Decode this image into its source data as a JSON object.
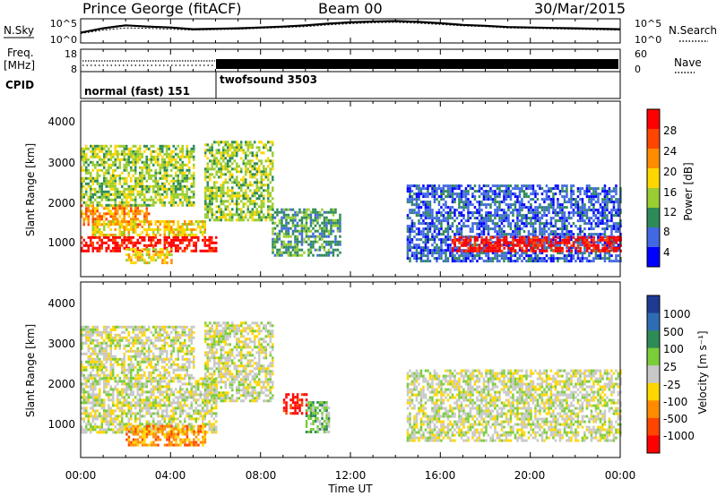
{
  "header": {
    "station": "Prince George (fitACF)",
    "beam": "Beam 00",
    "date": "30/Mar/2015"
  },
  "nsky_panel": {
    "left_label": "N.Sky",
    "right_label": "N.Search",
    "left_ticks": [
      "10^5",
      "10^0"
    ],
    "right_ticks": [
      "10^5",
      "10^0"
    ]
  },
  "freq_panel": {
    "left_label_line1": "Freq.",
    "left_label_line2": "[MHz]",
    "left_ticks": [
      "18",
      "8"
    ],
    "right_ticks": [
      "60",
      "0"
    ],
    "right_label": "Nave"
  },
  "cpid_panel": {
    "label": "CPID",
    "modes": [
      {
        "name": "normal (fast) 151",
        "start_hour": 0,
        "end_hour": 6
      },
      {
        "name": "twofsound 3503",
        "start_hour": 6,
        "end_hour": 24
      }
    ]
  },
  "power_panel": {
    "ylabel": "Slant Range [km]",
    "yticks": [
      "4000",
      "3000",
      "2000",
      "1000"
    ],
    "colorbar_label": "Power [dB]",
    "colorbar_ticks": [
      "28",
      "24",
      "20",
      "16",
      "12",
      "8",
      "4"
    ],
    "colors": [
      "#ff0000",
      "#ff4500",
      "#ff8c00",
      "#ffd700",
      "#9acd32",
      "#2e8b57",
      "#4169e1",
      "#0000ff"
    ]
  },
  "velocity_panel": {
    "ylabel": "Slant Range [km]",
    "yticks": [
      "4000",
      "3000",
      "2000",
      "1000"
    ],
    "colorbar_label": "Velocity [m s⁻¹]",
    "colorbar_ticks": [
      "1000",
      "500",
      "100",
      "25",
      "-25",
      "-100",
      "-500",
      "-1000"
    ],
    "colors": [
      "#1f3a93",
      "#2e6db4",
      "#2e8b57",
      "#7ccd3a",
      "#c8c8c8",
      "#ffd700",
      "#ff8c00",
      "#ff4500",
      "#ff0000"
    ]
  },
  "time_axis": {
    "xlabel": "Time UT",
    "ticks": [
      "00:00",
      "04:00",
      "08:00",
      "12:00",
      "16:00",
      "20:00",
      "00:00"
    ]
  },
  "chart_data": [
    {
      "type": "line",
      "title": "N.Sky / N.Search",
      "x_hours": [
        0,
        1,
        2,
        3,
        4,
        5,
        6,
        7,
        8,
        9,
        10,
        11,
        12,
        13,
        14,
        15,
        16,
        17,
        18,
        19,
        20,
        21,
        22,
        23,
        24
      ],
      "series": [
        {
          "name": "N.Sky",
          "values_log": [
            2.2,
            3.2,
            3.9,
            3.6,
            3.4,
            3.0,
            3.1,
            3.2,
            3.4,
            3.6,
            3.9,
            4.3,
            4.6,
            4.8,
            4.9,
            4.7,
            4.4,
            4.0,
            3.8,
            3.5,
            3.4,
            3.3,
            3.2,
            3.1,
            3.0
          ]
        },
        {
          "name": "N.Search",
          "values_log": [
            2.0,
            2.8,
            3.3,
            3.2,
            3.0,
            2.8,
            2.9,
            3.0,
            3.2,
            3.4,
            3.6,
            4.0,
            4.3,
            4.5,
            4.6,
            4.4,
            4.1,
            3.8,
            3.6,
            3.3,
            3.2,
            3.1,
            3.0,
            2.9,
            2.8
          ]
        }
      ],
      "ylim_log": [
        0,
        5
      ]
    },
    {
      "type": "line",
      "title": "Freq. / Nave",
      "series": [
        {
          "name": "Freq.",
          "segments": [
            {
              "start_hour": 0,
              "end_hour": 6,
              "value_mhz": 11
            },
            {
              "start_hour": 6,
              "end_hour": 24,
              "value_mhz_min": 10,
              "value_mhz_max": 13
            }
          ]
        },
        {
          "name": "Nave",
          "segments": [
            {
              "start_hour": 0,
              "end_hour": 6,
              "value": 30
            },
            {
              "start_hour": 6,
              "end_hour": 24,
              "value": 30
            }
          ]
        }
      ],
      "ylim": [
        8,
        18
      ]
    },
    {
      "type": "heatmap",
      "title": "Power [dB]",
      "xlim_hours": [
        0,
        24
      ],
      "ylim_km": [
        180,
        4600
      ],
      "regions": [
        {
          "t0": 0.0,
          "t1": 6.0,
          "r0": 800,
          "r1": 1200,
          "level": 0
        },
        {
          "t0": 0.0,
          "t1": 3.0,
          "r0": 1500,
          "r1": 2000,
          "level": 2
        },
        {
          "t0": 0.5,
          "t1": 5.5,
          "r0": 1200,
          "r1": 1600,
          "level": 3
        },
        {
          "t0": 0.0,
          "t1": 5.0,
          "r0": 2000,
          "r1": 3500,
          "level": 4
        },
        {
          "t0": 2.0,
          "t1": 4.0,
          "r0": 500,
          "r1": 900,
          "level": 3
        },
        {
          "t0": 5.5,
          "t1": 8.5,
          "r0": 1600,
          "r1": 3600,
          "level": 4
        },
        {
          "t0": 8.5,
          "t1": 11.5,
          "r0": 700,
          "r1": 1900,
          "level": 5
        },
        {
          "t0": 14.5,
          "t1": 24.0,
          "r0": 600,
          "r1": 2500,
          "level": 6
        },
        {
          "t0": 16.5,
          "t1": 24.0,
          "r0": 800,
          "r1": 1200,
          "level": 0
        }
      ]
    },
    {
      "type": "heatmap",
      "title": "Velocity [m s⁻¹]",
      "xlim_hours": [
        0,
        24
      ],
      "ylim_km": [
        180,
        4600
      ],
      "regions": [
        {
          "t0": 0.0,
          "t1": 6.0,
          "r0": 800,
          "r1": 2200,
          "level": 4
        },
        {
          "t0": 0.0,
          "t1": 5.0,
          "r0": 2200,
          "r1": 3500,
          "level": 4
        },
        {
          "t0": 2.0,
          "t1": 5.5,
          "r0": 500,
          "r1": 1000,
          "level": 6
        },
        {
          "t0": 5.5,
          "t1": 8.5,
          "r0": 1600,
          "r1": 3600,
          "level": 4
        },
        {
          "t0": 9.0,
          "t1": 10.0,
          "r0": 1300,
          "r1": 1800,
          "level": 8
        },
        {
          "t0": 10.0,
          "t1": 11.0,
          "r0": 800,
          "r1": 1600,
          "level": 3
        },
        {
          "t0": 14.5,
          "t1": 24.0,
          "r0": 600,
          "r1": 2400,
          "level": 4
        }
      ]
    }
  ]
}
